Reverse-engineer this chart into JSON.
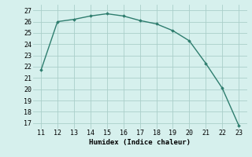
{
  "x": [
    11,
    12,
    13,
    14,
    15,
    16,
    17,
    18,
    19,
    20,
    21,
    22,
    23
  ],
  "y": [
    21.7,
    26.0,
    26.2,
    26.5,
    26.7,
    26.5,
    26.1,
    25.8,
    25.2,
    24.3,
    22.3,
    20.1,
    16.8
  ],
  "line_color": "#2e7d6e",
  "marker": "D",
  "marker_size": 1.8,
  "line_width": 1.0,
  "bg_color": "#d6f0ed",
  "grid_color": "#aacfca",
  "xlabel": "Humidex (Indice chaleur)",
  "xlabel_fontsize": 6.5,
  "tick_fontsize": 6.0,
  "xlim": [
    10.5,
    23.5
  ],
  "ylim": [
    16.5,
    27.5
  ],
  "yticks": [
    17,
    18,
    19,
    20,
    21,
    22,
    23,
    24,
    25,
    26,
    27
  ],
  "xticks": [
    11,
    12,
    13,
    14,
    15,
    16,
    17,
    18,
    19,
    20,
    21,
    22,
    23
  ]
}
